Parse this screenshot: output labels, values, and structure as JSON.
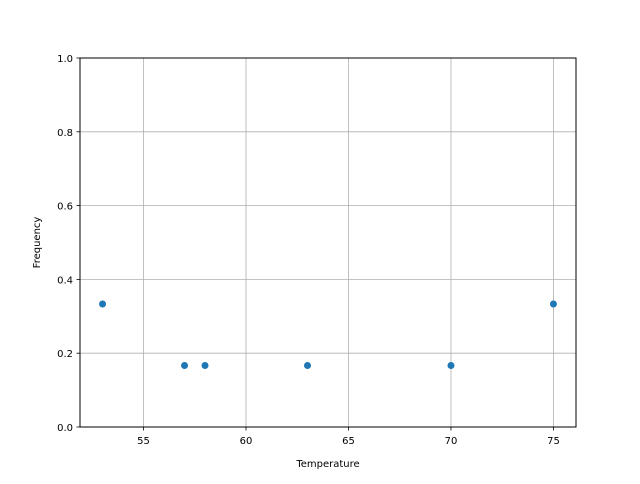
{
  "chart_data": {
    "type": "scatter",
    "title": "",
    "xlabel": "Temperature",
    "ylabel": "Frequency",
    "x": [
      53,
      57,
      58,
      63,
      70,
      75
    ],
    "y": [
      0.3333,
      0.1667,
      0.1667,
      0.1667,
      0.1667,
      0.3333
    ],
    "xlim": [
      51.9,
      76.1
    ],
    "ylim": [
      0.0,
      1.0
    ],
    "xticks": [
      55,
      60,
      65,
      70,
      75
    ],
    "xtick_labels": [
      "55",
      "60",
      "65",
      "70",
      "75"
    ],
    "yticks": [
      0.0,
      0.2,
      0.4,
      0.6,
      0.8,
      1.0
    ],
    "ytick_labels": [
      "0.0",
      "0.2",
      "0.4",
      "0.6",
      "0.8",
      "1.0"
    ],
    "grid": true,
    "marker_color": "#1f77b4"
  }
}
